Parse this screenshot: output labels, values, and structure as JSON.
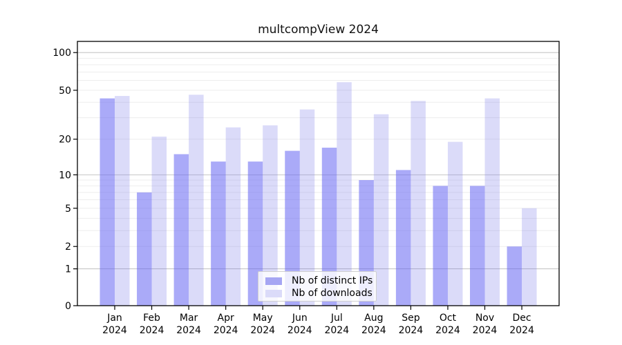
{
  "title": "multcompView 2024",
  "chart_data": {
    "type": "bar",
    "title": "multcompView 2024",
    "categories": [
      "Jan 2024",
      "Feb 2024",
      "Mar 2024",
      "Apr 2024",
      "May 2024",
      "Jun 2024",
      "Jul 2024",
      "Aug 2024",
      "Sep 2024",
      "Oct 2024",
      "Nov 2024",
      "Dec 2024"
    ],
    "series": [
      {
        "name": "Nb of distinct IPs",
        "color": "#a6a6f3",
        "fill_rgba": "rgba(100,100,242,0.55)",
        "values": [
          43,
          7,
          15,
          13,
          13,
          16,
          17,
          9,
          11,
          8,
          8,
          2
        ]
      },
      {
        "name": "Nb of downloads",
        "color": "#dbdbf9",
        "fill_rgba": "rgba(110,110,232,0.25)",
        "values": [
          45,
          21,
          46,
          25,
          26,
          35,
          58,
          32,
          41,
          19,
          43,
          5
        ]
      }
    ],
    "xlabel": "",
    "ylabel": "",
    "yscale": "log1p",
    "yticks": [
      0,
      1,
      2,
      5,
      10,
      20,
      50,
      100
    ],
    "ylim": [
      0,
      120
    ],
    "grid": "on",
    "legend_position": "bottom-center-inside",
    "colors": {
      "axis": "#000000",
      "grid_major": "#c6c6c6",
      "grid_minor": "#ededed",
      "background": "#ffffff",
      "text": "#000000"
    }
  }
}
